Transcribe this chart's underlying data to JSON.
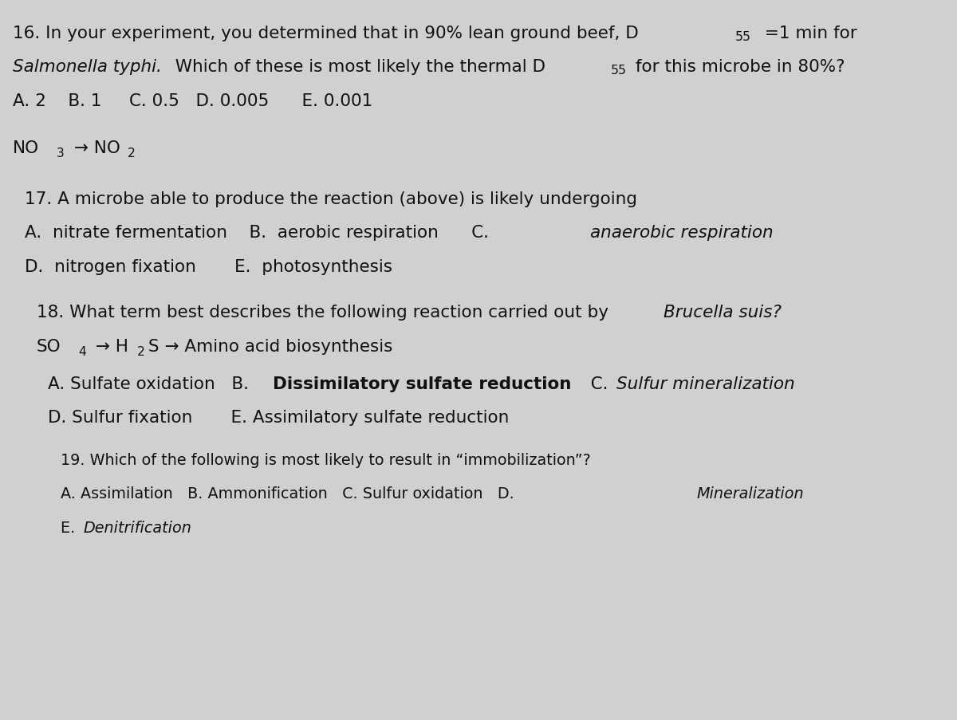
{
  "bg_color": "#d0d0d0",
  "text_color": "#111111",
  "fig_width": 12.0,
  "fig_height": 9.04,
  "fontsize_main": 15.5,
  "fontsize_small": 13.8,
  "q16_line1_main": "16. In your experiment, you determined that in 90% lean ground beef, D",
  "q16_line1_sub": "55",
  "q16_line1_after": " =1 min for",
  "q16_line2_italic": "Salmonella typhi.",
  "q16_line2_normal": "  Which of these is most likely the thermal D",
  "q16_line2_sub": "55",
  "q16_line2_after": " for this microbe in 80%?",
  "q16_line3": "A. 2    B. 1     C. 0.5   D. 0.005      E. 0.001",
  "no3_text": "NO",
  "no3_sub": "3",
  "arrow": " → NO",
  "no2_sub": "2",
  "q17_line1": "17. A microbe able to produce the reaction (above) is likely undergoing",
  "q17_line2a": "A.  nitrate fermentation    B.  aerobic respiration      C. ",
  "q17_line2b_italic": "anaerobic respiration",
  "q17_line3": "D.  nitrogen fixation       E.  photosynthesis",
  "q18_line1a": "18. What term best describes the following reaction carried out by ",
  "q18_line1b_italic": "Brucella suis?",
  "q18_line2_so4": "SO",
  "q18_line2_sub4": "4",
  "q18_line2_h2s": " → H",
  "q18_line2_sub2": "2",
  "q18_line2_rest": "S → Amino acid biosynthesis",
  "q18_line3a": "A. Sulfate oxidation   B. ",
  "q18_line3b_bold": "Dissimilatory sulfate reduction",
  "q18_line3c": "   C. ",
  "q18_line3d_italic": "Sulfur mineralization",
  "q18_line4": "D. Sulfur fixation       E. Assimilatory sulfate reduction",
  "q19_line1": "19. Which of the following is most likely to result in “immobilization”?",
  "q19_line2a": "A. Assimilation   B. Ammonification   C. Sulfur oxidation   D. ",
  "q19_line2b_italic": "Mineralization",
  "q19_line3a": "E. ",
  "q19_line3b_italic": "Denitrification"
}
